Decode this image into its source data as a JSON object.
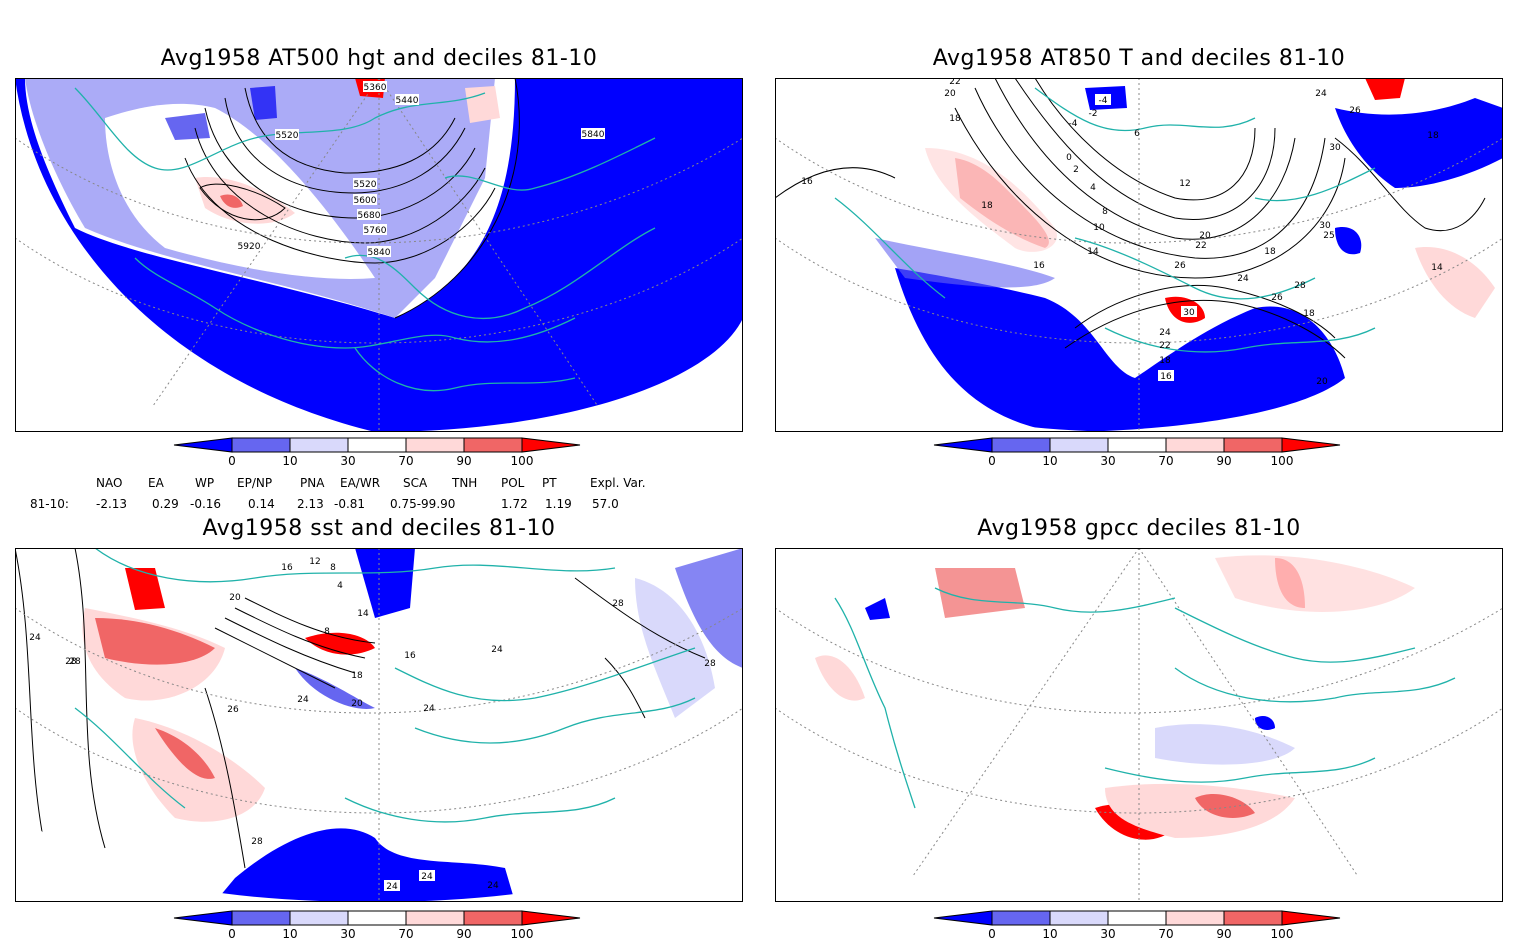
{
  "panels": [
    {
      "id": "p1",
      "title": "Avg1958 AT500 hgt and deciles 81-10",
      "contour_labels": [
        "5360",
        "5440",
        "5520",
        "5840",
        "5520",
        "5600",
        "5680",
        "5760",
        "5840",
        "5920"
      ]
    },
    {
      "id": "p2",
      "title": "Avg1958 AT850 T and deciles 81-10",
      "contour_labels": [
        "22",
        "20",
        "18",
        "16",
        "-4",
        "-4",
        "-2",
        "6",
        "0",
        "2",
        "4",
        "8",
        "10",
        "12",
        "14",
        "16",
        "18",
        "20",
        "22",
        "24",
        "26",
        "28",
        "30",
        "26",
        "30",
        "25",
        "18",
        "24",
        "22",
        "18",
        "16",
        "18",
        "20",
        "18",
        "14",
        "24",
        "26",
        "30"
      ]
    },
    {
      "id": "p3",
      "title": "Avg1958 sst and deciles 81-10",
      "contour_labels": [
        "24",
        "28",
        "20",
        "16",
        "12",
        "8",
        "4",
        "14",
        "8",
        "16",
        "18",
        "20",
        "24",
        "26",
        "28",
        "24",
        "24",
        "24",
        "24",
        "28",
        "28",
        "28",
        "24"
      ]
    },
    {
      "id": "p4",
      "title": "Avg1958 gpcc deciles 81-10",
      "contour_labels": []
    }
  ],
  "colorbar": {
    "ticks": [
      "0",
      "10",
      "30",
      "70",
      "90",
      "100"
    ],
    "colors": [
      "#0000ff",
      "#6666f0",
      "#d9d9fb",
      "#ffffff",
      "#ffd9d9",
      "#f06666",
      "#ff0000"
    ]
  },
  "indices": {
    "row_label": "81-10:",
    "headers": [
      "NAO",
      "EA",
      "WP",
      "EP/NP",
      "PNA",
      "EA/WR",
      "SCA",
      "TNH",
      "POL",
      "PT",
      "Expl. Var."
    ],
    "values": [
      "-2.13",
      "0.29",
      "-0.16",
      "0.14",
      "2.13",
      "-0.81",
      "0.75",
      "-99.90",
      "1.72",
      "1.19",
      "57.0"
    ]
  }
}
